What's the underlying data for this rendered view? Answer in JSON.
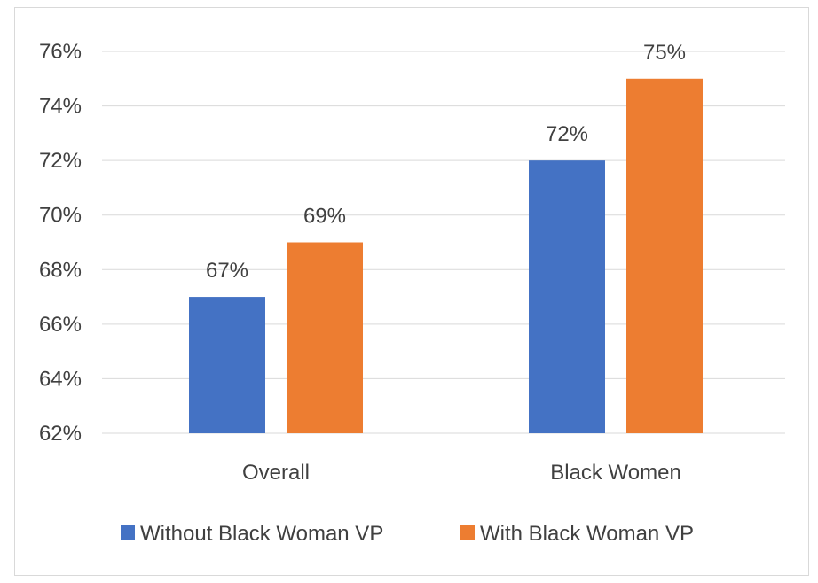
{
  "chart_data": {
    "type": "bar",
    "title": "",
    "xlabel": "",
    "ylabel": "",
    "categories": [
      "Overall",
      "Black Women"
    ],
    "series": [
      {
        "name": "Without Black Woman VP",
        "values": [
          67,
          72
        ],
        "labels": [
          "67%",
          "72%"
        ],
        "color": "#4472C4"
      },
      {
        "name": "With Black Woman VP",
        "values": [
          69,
          75
        ],
        "labels": [
          "69%",
          "75%"
        ],
        "color": "#ED7D31"
      }
    ],
    "ylim": [
      62,
      76
    ],
    "yticks": [
      62,
      64,
      66,
      68,
      70,
      72,
      74,
      76
    ],
    "ytick_labels": [
      "62%",
      "64%",
      "66%",
      "68%",
      "70%",
      "72%",
      "74%",
      "76%"
    ],
    "grid": true,
    "gridline_color": "#d9d9d9",
    "legend_position": "bottom"
  }
}
